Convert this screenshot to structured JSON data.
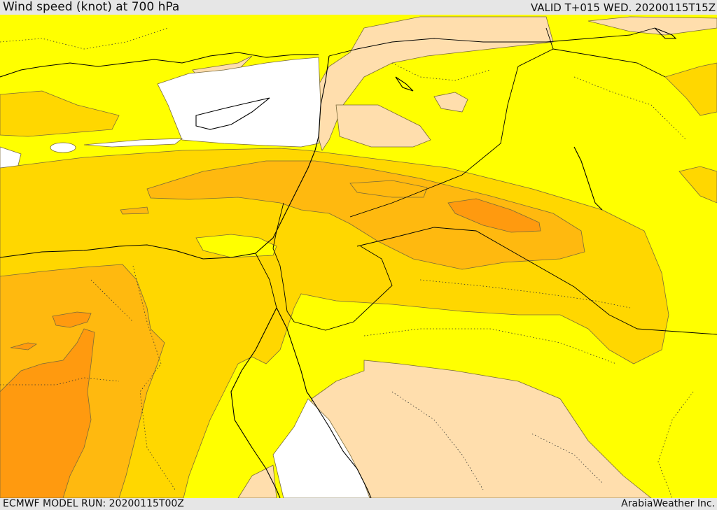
{
  "header": {
    "title": "Wind speed (knot) at 700 hPa",
    "valid": "VALID T+015 WED. 20200115T15Z"
  },
  "footer": {
    "model_run": "ECMWF MODEL RUN: 20200115T00Z",
    "credit": "ArabiaWeather Inc."
  },
  "map_legend_colors": {
    "calm": "#ffffff",
    "light": "#ffdead",
    "moderate": "#ffff00",
    "fresh": "#ffd700",
    "strong": "#ffb90f",
    "very_strong": "#ff9a0f"
  },
  "colors": {
    "contour": "#7a6a3a",
    "coastline": "#000000",
    "border": "#000000"
  }
}
